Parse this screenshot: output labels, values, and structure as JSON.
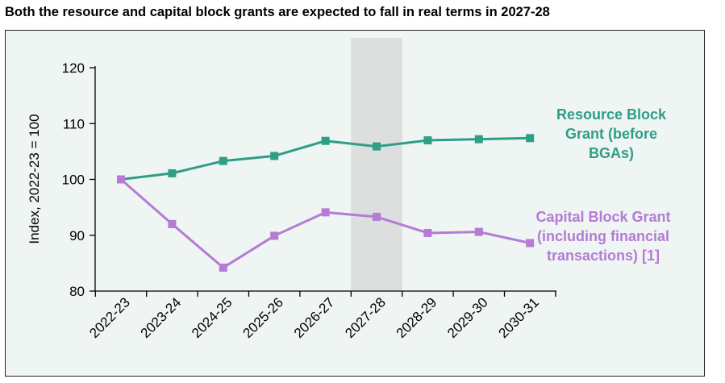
{
  "title": "Both the resource and capital block grants are expected to fall in real terms in 2027-28",
  "chart_data": {
    "type": "line",
    "categories": [
      "2022-23",
      "2023-24",
      "2024-25",
      "2025-26",
      "2026-27",
      "2027-28",
      "2028-29",
      "2029-30",
      "2030-31"
    ],
    "ylabel": "Index, 2022-23 = 100",
    "ylim": [
      80,
      120
    ],
    "yticks": [
      80,
      90,
      100,
      110,
      120
    ],
    "highlight_category": "2027-28",
    "highlight_color": "#dcdfdd",
    "grid": false,
    "series": [
      {
        "name_lines": [
          "Resource Block",
          "Grant (before",
          "BGAs)"
        ],
        "color": "#2e9e87",
        "values": [
          100,
          101.1,
          103.3,
          104.2,
          106.9,
          105.9,
          107.0,
          107.2,
          107.4
        ]
      },
      {
        "name_lines": [
          "Capital Block Grant",
          "(including financial",
          "transactions) [1]"
        ],
        "color": "#b57bd6",
        "values": [
          100,
          92.0,
          84.2,
          89.9,
          94.1,
          93.3,
          90.4,
          90.6,
          88.6
        ]
      }
    ]
  }
}
